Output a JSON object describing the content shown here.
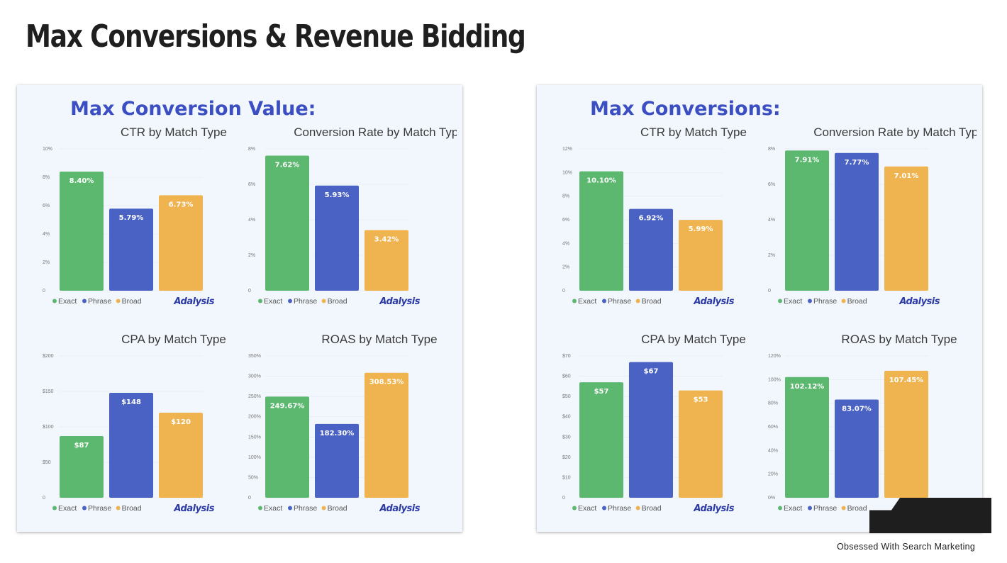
{
  "page": {
    "title": "Max Conversions & Revenue Bidding",
    "tagline": "Obsessed With Search Marketing"
  },
  "legend": {
    "series": [
      "Exact",
      "Phrase",
      "Broad"
    ],
    "brand": "Adalysis"
  },
  "colors": {
    "Exact": "#5cb86f",
    "Phrase": "#4a62c4",
    "Broad": "#efb450",
    "heading": "#3b4fc3",
    "panel_bg": "#f2f7fd"
  },
  "panels": [
    {
      "heading": "Max Conversion Value:",
      "charts": [
        {
          "type": "bar",
          "title": "CTR by Match Type",
          "categories": [
            "Exact",
            "Phrase",
            "Broad"
          ],
          "values": [
            8.4,
            5.79,
            6.73
          ],
          "labels": [
            "8.40%",
            "5.79%",
            "6.73%"
          ],
          "ylim": [
            0,
            10
          ],
          "yticks": [
            0,
            2,
            4,
            6,
            8,
            10
          ],
          "yticklabels": [
            "0",
            "2%",
            "4%",
            "6%",
            "8%",
            "10%"
          ]
        },
        {
          "type": "bar",
          "title": "Conversion Rate by Match Type",
          "categories": [
            "Exact",
            "Phrase",
            "Broad"
          ],
          "values": [
            7.62,
            5.93,
            3.42
          ],
          "labels": [
            "7.62%",
            "5.93%",
            "3.42%"
          ],
          "ylim": [
            0,
            8
          ],
          "yticks": [
            0,
            2,
            4,
            6,
            8
          ],
          "yticklabels": [
            "0",
            "2%",
            "4%",
            "6%",
            "8%"
          ]
        },
        {
          "type": "bar",
          "title": "CPA by Match Type",
          "categories": [
            "Exact",
            "Phrase",
            "Broad"
          ],
          "values": [
            87,
            148,
            120
          ],
          "labels": [
            "$87",
            "$148",
            "$120"
          ],
          "ylim": [
            0,
            200
          ],
          "yticks": [
            0,
            50,
            100,
            150,
            200
          ],
          "yticklabels": [
            "0",
            "$50",
            "$100",
            "$150",
            "$200"
          ]
        },
        {
          "type": "bar",
          "title": "ROAS by Match Type",
          "categories": [
            "Exact",
            "Phrase",
            "Broad"
          ],
          "values": [
            249.67,
            182.3,
            308.53
          ],
          "labels": [
            "249.67%",
            "182.30%",
            "308.53%"
          ],
          "ylim": [
            0,
            350
          ],
          "yticks": [
            0,
            50,
            100,
            150,
            200,
            250,
            300,
            350
          ],
          "yticklabels": [
            "0",
            "50%",
            "100%",
            "150%",
            "200%",
            "250%",
            "300%",
            "350%"
          ]
        }
      ]
    },
    {
      "heading": "Max Conversions:",
      "charts": [
        {
          "type": "bar",
          "title": "CTR by Match Type",
          "categories": [
            "Exact",
            "Phrase",
            "Broad"
          ],
          "values": [
            10.1,
            6.92,
            5.99
          ],
          "labels": [
            "10.10%",
            "6.92%",
            "5.99%"
          ],
          "ylim": [
            0,
            12
          ],
          "yticks": [
            0,
            2,
            4,
            6,
            8,
            10,
            12
          ],
          "yticklabels": [
            "0",
            "2%",
            "4%",
            "6%",
            "8%",
            "10%",
            "12%"
          ]
        },
        {
          "type": "bar",
          "title": "Conversion Rate by Match Type",
          "categories": [
            "Exact",
            "Phrase",
            "Broad"
          ],
          "values": [
            7.91,
            7.77,
            7.01
          ],
          "labels": [
            "7.91%",
            "7.77%",
            "7.01%"
          ],
          "ylim": [
            0,
            8
          ],
          "yticks": [
            0,
            2,
            4,
            6,
            8
          ],
          "yticklabels": [
            "0",
            "2%",
            "4%",
            "6%",
            "8%"
          ]
        },
        {
          "type": "bar",
          "title": "CPA by Match Type",
          "categories": [
            "Exact",
            "Phrase",
            "Broad"
          ],
          "values": [
            57,
            67,
            53
          ],
          "labels": [
            "$57",
            "$67",
            "$53"
          ],
          "ylim": [
            0,
            70
          ],
          "yticks": [
            0,
            10,
            20,
            30,
            40,
            50,
            60,
            70
          ],
          "yticklabels": [
            "0",
            "$10",
            "$20",
            "$30",
            "$40",
            "$50",
            "$60",
            "$70"
          ]
        },
        {
          "type": "bar",
          "title": "ROAS by Match Type",
          "categories": [
            "Exact",
            "Phrase",
            "Broad"
          ],
          "values": [
            102.12,
            83.07,
            107.45
          ],
          "labels": [
            "102.12%",
            "83.07%",
            "107.45%"
          ],
          "ylim": [
            0,
            120
          ],
          "yticks": [
            0,
            20,
            40,
            60,
            80,
            100,
            120
          ],
          "yticklabels": [
            "0%",
            "20%",
            "40%",
            "60%",
            "80%",
            "100%",
            "120%"
          ]
        }
      ]
    }
  ],
  "chart_data": [
    {
      "type": "bar",
      "panel": "Max Conversion Value:",
      "title": "CTR by Match Type",
      "categories": [
        "Exact",
        "Phrase",
        "Broad"
      ],
      "values": [
        8.4,
        5.79,
        6.73
      ],
      "ylim": [
        0,
        10
      ]
    },
    {
      "type": "bar",
      "panel": "Max Conversion Value:",
      "title": "Conversion Rate by Match Type",
      "categories": [
        "Exact",
        "Phrase",
        "Broad"
      ],
      "values": [
        7.62,
        5.93,
        3.42
      ],
      "ylim": [
        0,
        8
      ]
    },
    {
      "type": "bar",
      "panel": "Max Conversion Value:",
      "title": "CPA by Match Type",
      "categories": [
        "Exact",
        "Phrase",
        "Broad"
      ],
      "values": [
        87,
        148,
        120
      ],
      "ylim": [
        0,
        200
      ]
    },
    {
      "type": "bar",
      "panel": "Max Conversion Value:",
      "title": "ROAS by Match Type",
      "categories": [
        "Exact",
        "Phrase",
        "Broad"
      ],
      "values": [
        249.67,
        182.3,
        308.53
      ],
      "ylim": [
        0,
        350
      ]
    },
    {
      "type": "bar",
      "panel": "Max Conversions:",
      "title": "CTR by Match Type",
      "categories": [
        "Exact",
        "Phrase",
        "Broad"
      ],
      "values": [
        10.1,
        6.92,
        5.99
      ],
      "ylim": [
        0,
        12
      ]
    },
    {
      "type": "bar",
      "panel": "Max Conversions:",
      "title": "Conversion Rate by Match Type",
      "categories": [
        "Exact",
        "Phrase",
        "Broad"
      ],
      "values": [
        7.91,
        7.77,
        7.01
      ],
      "ylim": [
        0,
        8
      ]
    },
    {
      "type": "bar",
      "panel": "Max Conversions:",
      "title": "CPA by Match Type",
      "categories": [
        "Exact",
        "Phrase",
        "Broad"
      ],
      "values": [
        57,
        67,
        53
      ],
      "ylim": [
        0,
        70
      ]
    },
    {
      "type": "bar",
      "panel": "Max Conversions:",
      "title": "ROAS by Match Type",
      "categories": [
        "Exact",
        "Phrase",
        "Broad"
      ],
      "values": [
        102.12,
        83.07,
        107.45
      ],
      "ylim": [
        0,
        120
      ]
    }
  ]
}
